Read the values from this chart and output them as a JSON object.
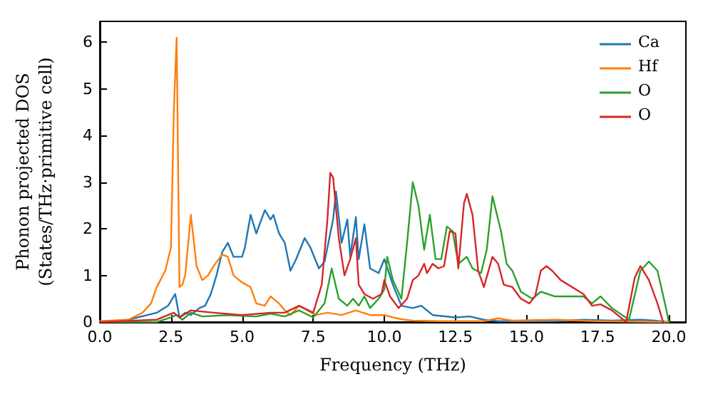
{
  "chart_data": {
    "type": "line",
    "xlabel": "Frequency (THz)",
    "ylabel": "Phonon projected DOS\n(States/THz·primitive cell)",
    "xlim": [
      0,
      20.6
    ],
    "ylim": [
      0,
      6.45
    ],
    "xticks": [
      {
        "value": 0,
        "label": "0.0"
      },
      {
        "value": 2.5,
        "label": "2.5"
      },
      {
        "value": 5,
        "label": "5.0"
      },
      {
        "value": 7.5,
        "label": "7.5"
      },
      {
        "value": 10,
        "label": "10.0"
      },
      {
        "value": 12.5,
        "label": "12.5"
      },
      {
        "value": 15,
        "label": "15.0"
      },
      {
        "value": 17.5,
        "label": "17.5"
      },
      {
        "value": 20,
        "label": "20.0"
      }
    ],
    "yticks": [
      0,
      1,
      2,
      3,
      4,
      5,
      6
    ],
    "grid": false,
    "legend": "top right",
    "marker": "none",
    "line_style": "solid",
    "series": [
      {
        "name": "Ca",
        "color": "#1f77b4",
        "x": [
          0,
          1,
          2,
          2.4,
          2.65,
          2.8,
          3,
          3.2,
          3.5,
          3.7,
          3.9,
          4.1,
          4.3,
          4.5,
          4.7,
          5,
          5.1,
          5.3,
          5.5,
          5.8,
          6,
          6.1,
          6.3,
          6.5,
          6.7,
          6.9,
          7.2,
          7.4,
          7.7,
          7.9,
          8.2,
          8.3,
          8.5,
          8.7,
          8.8,
          9,
          9.1,
          9.3,
          9.5,
          9.8,
          10,
          10.3,
          10.6,
          11,
          11.3,
          11.7,
          12.5,
          13,
          13.5,
          14,
          16,
          17,
          18,
          19,
          19.5,
          20
        ],
        "values": [
          0,
          0.05,
          0.2,
          0.35,
          0.6,
          0.1,
          0.2,
          0.15,
          0.3,
          0.35,
          0.6,
          1.0,
          1.5,
          1.7,
          1.4,
          1.4,
          1.6,
          2.3,
          1.9,
          2.4,
          2.2,
          2.3,
          1.9,
          1.7,
          1.1,
          1.35,
          1.8,
          1.6,
          1.15,
          1.3,
          2.2,
          2.8,
          1.7,
          2.2,
          1.4,
          2.25,
          1.35,
          2.1,
          1.15,
          1.05,
          1.35,
          0.8,
          0.35,
          0.3,
          0.35,
          0.15,
          0.1,
          0.12,
          0.05,
          0.02,
          0.02,
          0.05,
          0.03,
          0.05,
          0.03,
          0
        ]
      },
      {
        "name": "Hf",
        "color": "#ff7f0e",
        "x": [
          0,
          1,
          1.5,
          1.8,
          2,
          2.3,
          2.5,
          2.6,
          2.7,
          2.8,
          2.9,
          3,
          3.2,
          3.4,
          3.6,
          3.8,
          4,
          4.3,
          4.5,
          4.7,
          5,
          5.3,
          5.5,
          5.8,
          6,
          6.3,
          6.5,
          6.7,
          7,
          7.3,
          7.6,
          8,
          8.5,
          9,
          9.5,
          10,
          10.3,
          10.7,
          11,
          12,
          13.5,
          14,
          14.5,
          16,
          17.5,
          20
        ],
        "values": [
          0.02,
          0.05,
          0.2,
          0.4,
          0.75,
          1.1,
          1.6,
          4.5,
          6.1,
          0.75,
          0.8,
          1.0,
          2.3,
          1.2,
          0.9,
          1.0,
          1.2,
          1.45,
          1.4,
          1.0,
          0.85,
          0.75,
          0.4,
          0.35,
          0.55,
          0.4,
          0.25,
          0.15,
          0.35,
          0.25,
          0.15,
          0.2,
          0.15,
          0.25,
          0.15,
          0.15,
          0.1,
          0.05,
          0.03,
          0.02,
          0.02,
          0.08,
          0.03,
          0.05,
          0.02,
          0
        ]
      },
      {
        "name": "O",
        "color": "#2ca02c",
        "x": [
          0,
          2,
          2.5,
          2.7,
          2.9,
          3.2,
          3.6,
          4.5,
          5.5,
          6,
          6.5,
          7,
          7.5,
          7.9,
          8.15,
          8.4,
          8.7,
          8.9,
          9.1,
          9.3,
          9.5,
          9.8,
          10,
          10.1,
          10.3,
          10.6,
          10.8,
          11,
          11.2,
          11.4,
          11.6,
          11.8,
          12,
          12.2,
          12.4,
          12.6,
          12.9,
          13.1,
          13.4,
          13.6,
          13.8,
          14.1,
          14.3,
          14.5,
          14.8,
          15.2,
          15.5,
          16,
          17,
          17.3,
          17.6,
          18,
          18.6,
          19,
          19.3,
          19.6,
          19.9,
          20
        ],
        "values": [
          0,
          0,
          0.1,
          0.15,
          0.05,
          0.2,
          0.12,
          0.15,
          0.12,
          0.18,
          0.12,
          0.25,
          0.1,
          0.4,
          1.15,
          0.5,
          0.35,
          0.5,
          0.35,
          0.55,
          0.3,
          0.5,
          0.7,
          1.4,
          0.9,
          0.5,
          1.7,
          3.0,
          2.5,
          1.55,
          2.3,
          1.35,
          1.35,
          2.05,
          1.95,
          1.25,
          1.4,
          1.15,
          1.05,
          1.55,
          2.7,
          1.95,
          1.25,
          1.1,
          0.65,
          0.5,
          0.65,
          0.55,
          0.55,
          0.4,
          0.55,
          0.3,
          0.05,
          1.1,
          1.3,
          1.1,
          0.3,
          0
        ]
      },
      {
        "name": "O",
        "color": "#d62728",
        "x": [
          0,
          2,
          2.6,
          2.8,
          3.2,
          4,
          5,
          6,
          6.5,
          7,
          7.5,
          7.8,
          8,
          8.1,
          8.2,
          8.4,
          8.6,
          8.8,
          9,
          9.1,
          9.3,
          9.6,
          9.9,
          10,
          10.2,
          10.5,
          10.8,
          11,
          11.2,
          11.4,
          11.5,
          11.7,
          11.9,
          12.1,
          12.3,
          12.5,
          12.6,
          12.8,
          12.9,
          13.1,
          13.3,
          13.5,
          13.8,
          14,
          14.2,
          14.5,
          14.8,
          15.1,
          15.3,
          15.5,
          15.7,
          15.9,
          16.2,
          17,
          17.3,
          17.6,
          18,
          18.5,
          18.8,
          19,
          19.3,
          19.6,
          19.8
        ],
        "values": [
          0,
          0.05,
          0.2,
          0.1,
          0.25,
          0.2,
          0.15,
          0.2,
          0.2,
          0.35,
          0.2,
          0.8,
          2.2,
          3.2,
          3.1,
          1.8,
          1.0,
          1.35,
          1.8,
          0.8,
          0.6,
          0.5,
          0.6,
          0.9,
          0.55,
          0.3,
          0.5,
          0.9,
          1.0,
          1.25,
          1.05,
          1.25,
          1.15,
          1.2,
          1.95,
          1.9,
          1.15,
          2.55,
          2.75,
          2.3,
          1.1,
          0.75,
          1.4,
          1.25,
          0.8,
          0.75,
          0.5,
          0.4,
          0.55,
          1.1,
          1.2,
          1.1,
          0.9,
          0.6,
          0.35,
          0.38,
          0.25,
          0,
          0.95,
          1.2,
          0.9,
          0.4,
          0
        ]
      }
    ]
  }
}
